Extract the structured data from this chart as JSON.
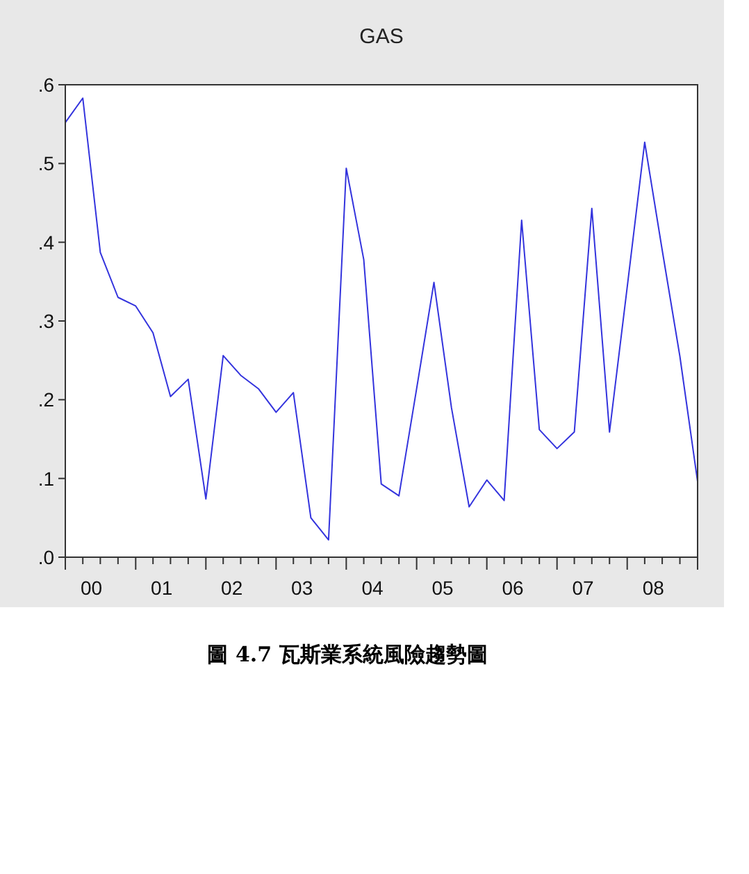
{
  "chart_data": {
    "type": "line",
    "title": "GAS",
    "x": [
      "2000-01",
      "2000-04",
      "2000-07",
      "2000-10",
      "2001-01",
      "2001-04",
      "2001-07",
      "2001-10",
      "2002-01",
      "2002-04",
      "2002-07",
      "2002-10",
      "2003-01",
      "2003-04",
      "2003-07",
      "2003-10",
      "2004-01",
      "2004-04",
      "2004-07",
      "2004-10",
      "2005-01",
      "2005-04",
      "2005-07",
      "2005-10",
      "2006-01",
      "2006-04",
      "2006-07",
      "2006-10",
      "2007-01",
      "2007-04",
      "2007-07",
      "2007-10",
      "2008-01",
      "2008-04",
      "2008-07",
      "2008-10",
      "2009-01"
    ],
    "series": [
      {
        "color": "#3333dd",
        "values": [
          0.552,
          0.583,
          0.387,
          0.33,
          0.319,
          0.285,
          0.204,
          0.226,
          0.074,
          0.256,
          0.231,
          0.214,
          0.184,
          0.209,
          0.05,
          0.022,
          0.494,
          0.378,
          0.093,
          0.078,
          0.214,
          0.349,
          0.19,
          0.064,
          0.098,
          0.072,
          0.428,
          0.162,
          0.138,
          0.159,
          0.443,
          0.159,
          0.343,
          0.527,
          0.39,
          0.255,
          0.096
        ]
      }
    ],
    "xlim": [
      "2000-01",
      "2009-01"
    ],
    "xticks": [
      {
        "value": "2000-01",
        "label": null
      },
      {
        "value": "2000-04",
        "label": null
      },
      {
        "value": "2000-07",
        "label": null
      },
      {
        "value": "2000-10",
        "label": null
      },
      {
        "value": "2001-01",
        "label": null
      },
      {
        "value": "2001-04",
        "label": null
      },
      {
        "value": "2001-07",
        "label": null
      },
      {
        "value": "2001-10",
        "label": null
      },
      {
        "value": "2002-01",
        "label": null
      },
      {
        "value": "2002-04",
        "label": null
      },
      {
        "value": "2002-07",
        "label": null
      },
      {
        "value": "2002-10",
        "label": null
      },
      {
        "value": "2003-01",
        "label": null
      },
      {
        "value": "2003-04",
        "label": null
      },
      {
        "value": "2003-07",
        "label": null
      },
      {
        "value": "2003-10",
        "label": null
      },
      {
        "value": "2004-01",
        "label": null
      },
      {
        "value": "2004-04",
        "label": null
      },
      {
        "value": "2004-07",
        "label": null
      },
      {
        "value": "2004-10",
        "label": null
      },
      {
        "value": "2005-01",
        "label": null
      },
      {
        "value": "2005-04",
        "label": null
      },
      {
        "value": "2005-07",
        "label": null
      },
      {
        "value": "2005-10",
        "label": null
      },
      {
        "value": "2006-01",
        "label": null
      },
      {
        "value": "2006-04",
        "label": null
      },
      {
        "value": "2006-07",
        "label": null
      },
      {
        "value": "2006-10",
        "label": null
      },
      {
        "value": "2007-01",
        "label": null
      },
      {
        "value": "2007-04",
        "label": null
      },
      {
        "value": "2007-07",
        "label": null
      },
      {
        "value": "2007-10",
        "label": null
      },
      {
        "value": "2008-01",
        "label": null
      },
      {
        "value": "2008-04",
        "label": null
      },
      {
        "value": "2008-07",
        "label": null
      },
      {
        "value": "2008-10",
        "label": null
      },
      {
        "value": "2009-01",
        "label": null
      },
      {
        "value": "2000-05-16",
        "label": "00"
      },
      {
        "value": "2001-05-16",
        "label": "01"
      },
      {
        "value": "2002-05-16",
        "label": "02"
      },
      {
        "value": "2003-05-16",
        "label": "03"
      },
      {
        "value": "2004-05-16",
        "label": "04"
      },
      {
        "value": "2005-05-16",
        "label": "05"
      },
      {
        "value": "2006-05-16",
        "label": "06"
      },
      {
        "value": "2007-05-16",
        "label": "07"
      },
      {
        "value": "2008-05-16",
        "label": "08"
      }
    ],
    "ylim": [
      0,
      0.6
    ],
    "yticks": [
      {
        "value": 0,
        "label": ".0"
      },
      {
        "value": 0.1,
        "label": ".1"
      },
      {
        "value": 0.2,
        "label": ".2"
      },
      {
        "value": 0.3,
        "label": ".3"
      },
      {
        "value": 0.4,
        "label": ".4"
      },
      {
        "value": 0.5,
        "label": ".5"
      },
      {
        "value": 0.6,
        "label": ".6"
      }
    ],
    "annotations": [
      "圖 4.7 瓦斯業系統風險趨勢圖"
    ]
  }
}
